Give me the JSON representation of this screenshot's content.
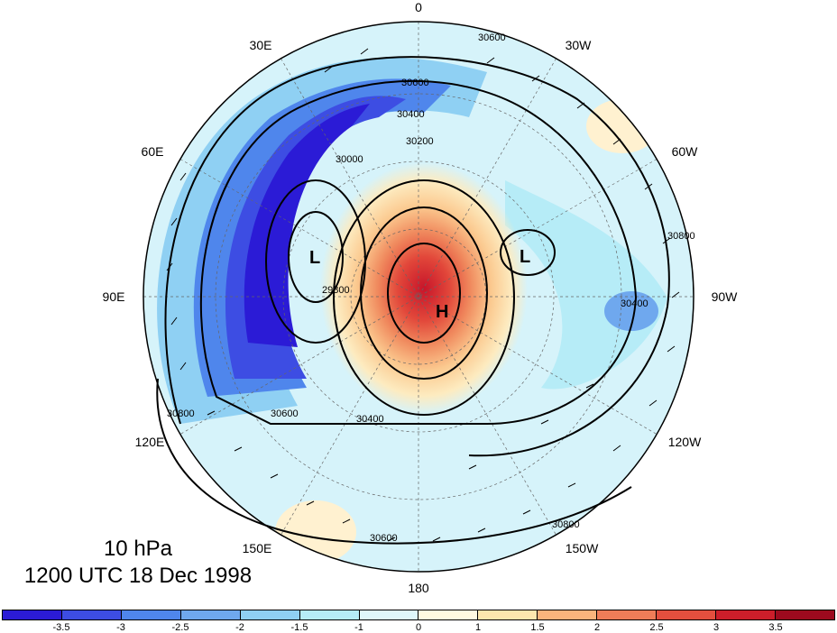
{
  "map": {
    "projection": "north polar stereographic",
    "center_longitude_top": "0",
    "longitude_labels": [
      "0",
      "30W",
      "60W",
      "90W",
      "120W",
      "150W",
      "180",
      "150E",
      "120E",
      "90E",
      "60E",
      "30E"
    ],
    "field_shading": "anomaly",
    "centers": [
      {
        "mark": "H"
      },
      {
        "mark": "L"
      },
      {
        "mark": "L"
      }
    ],
    "contour_labels": [
      "30600",
      "30600",
      "30400",
      "30200",
      "30000",
      "29800",
      "30800",
      "30400",
      "30600",
      "30800",
      "30800",
      "30600",
      "30400"
    ]
  },
  "caption": {
    "level": "10 hPa",
    "time": "1200 UTC 18 Dec 1998"
  },
  "colorbar": {
    "colors": [
      "#2b1bd6",
      "#3d4de3",
      "#4f86ec",
      "#6fa8ee",
      "#8fd0f3",
      "#b6ecf7",
      "#dff7fb",
      "#fff9e0",
      "#fde7ae",
      "#f9b47c",
      "#ef7d58",
      "#e44f3e",
      "#cc1e2a",
      "#9c0a1e"
    ],
    "tick_labels": [
      "-3.5",
      "-3",
      "-2.5",
      "-2",
      "-1.5",
      "-1",
      "0",
      "1",
      "1.5",
      "2",
      "2.5",
      "3",
      "3.5"
    ]
  }
}
